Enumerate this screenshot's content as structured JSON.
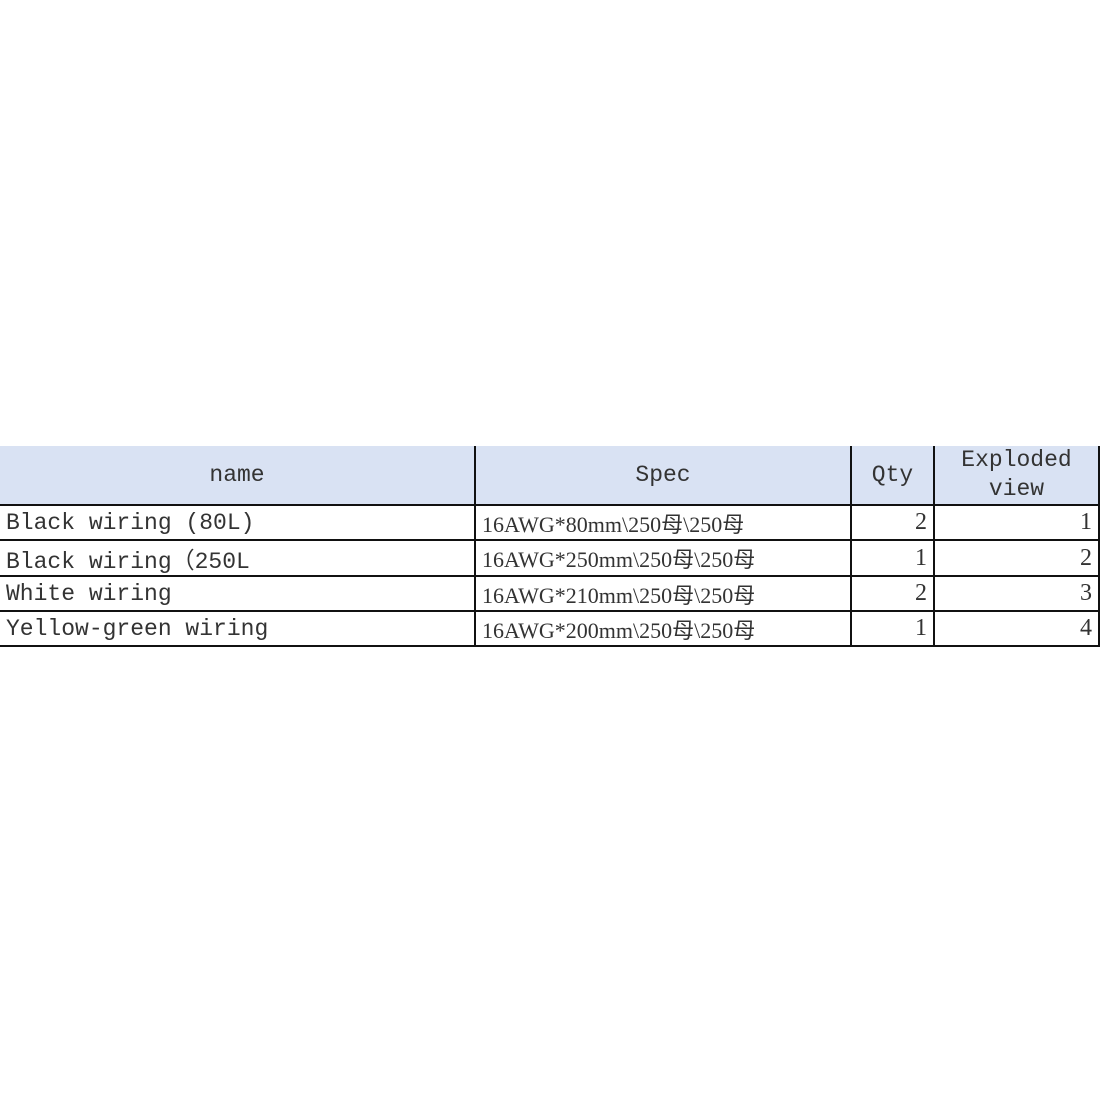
{
  "table": {
    "headers": [
      "name",
      "Spec",
      "Qty",
      "Exploded view"
    ],
    "rows": [
      {
        "name": "Black wiring (80L)",
        "spec": "16AWG*80mm\\250母\\250母",
        "qty": "2",
        "exploded_view": "1"
      },
      {
        "name": "Black wiring（250L",
        "spec": "16AWG*250mm\\250母\\250母",
        "qty": "1",
        "exploded_view": "2"
      },
      {
        "name": "White wiring",
        "spec": "16AWG*210mm\\250母\\250母",
        "qty": "2",
        "exploded_view": "3"
      },
      {
        "name": "Yellow-green wiring",
        "spec": "16AWG*200mm\\250母\\250母",
        "qty": "1",
        "exploded_view": "4"
      }
    ]
  },
  "colors": {
    "header_bg": "#d9e2f3",
    "selection": "#2f6fd8"
  }
}
